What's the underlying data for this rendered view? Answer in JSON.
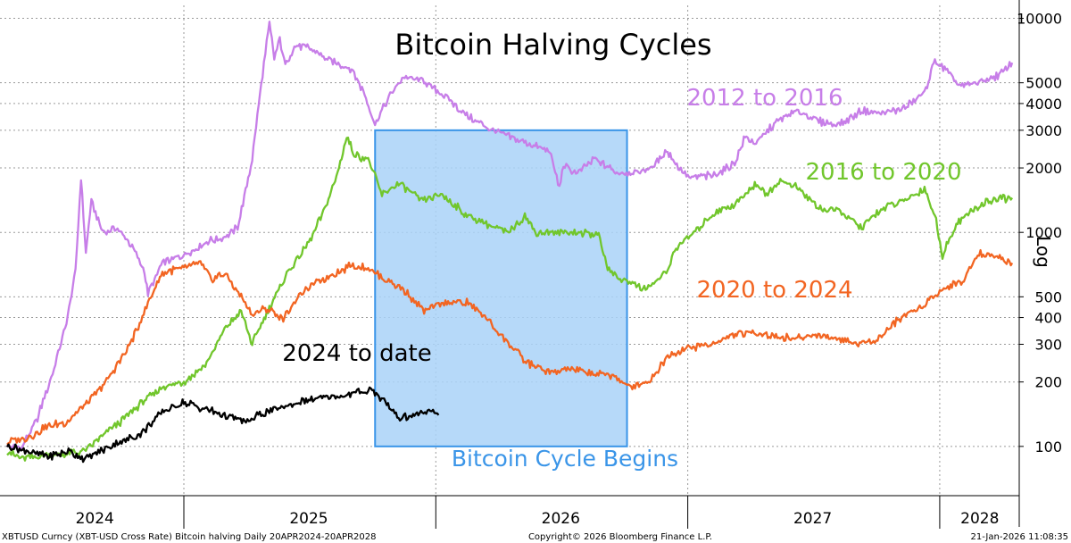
{
  "chart_data": {
    "type": "line",
    "title": "Bitcoin Halving Cycles",
    "yscale": "log",
    "ylabel": "Log",
    "ylim": [
      60,
      11500
    ],
    "y_ticks": [
      {
        "value": 100,
        "label": "100"
      },
      {
        "value": 200,
        "label": "200"
      },
      {
        "value": 300,
        "label": "300"
      },
      {
        "value": 400,
        "label": "400"
      },
      {
        "value": 500,
        "label": "500"
      },
      {
        "value": 1000,
        "label": "1000"
      },
      {
        "value": 2000,
        "label": "2000"
      },
      {
        "value": 3000,
        "label": "3000"
      },
      {
        "value": 4000,
        "label": "4000"
      },
      {
        "value": 5000,
        "label": "5000"
      },
      {
        "value": 10000,
        "label": "10000"
      }
    ],
    "xlim": [
      "2024-04-20",
      "2028-04-20"
    ],
    "x_ticks": [
      {
        "label": "2024",
        "position": "2024-08-25"
      },
      {
        "label": "2025",
        "position": "2025-07-01"
      },
      {
        "label": "2026",
        "position": "2026-07-01"
      },
      {
        "label": "2027",
        "position": "2027-07-01"
      },
      {
        "label": "2028",
        "position": "2028-02-28"
      }
    ],
    "x_boundaries": [
      "2025-01-01",
      "2026-01-01",
      "2027-01-01",
      "2028-01-01"
    ],
    "highlight": {
      "x0": "2025-10-05",
      "x1": "2026-10-05",
      "y0": 100,
      "y1": 3000,
      "label": "Bitcoin Cycle Begins",
      "color": "#a9d2f8",
      "border": "#3a95e8"
    },
    "series": [
      {
        "name": "2012 to 2016",
        "color": "#c77ee8",
        "points": [
          [
            "2024-04-20",
            100
          ],
          [
            "2024-05-10",
            98
          ],
          [
            "2024-06-01",
            130
          ],
          [
            "2024-06-25",
            220
          ],
          [
            "2024-07-15",
            380
          ],
          [
            "2024-07-28",
            650
          ],
          [
            "2024-08-05",
            1800
          ],
          [
            "2024-08-12",
            800
          ],
          [
            "2024-08-20",
            1400
          ],
          [
            "2024-09-05",
            1000
          ],
          [
            "2024-09-25",
            1050
          ],
          [
            "2024-10-20",
            850
          ],
          [
            "2024-11-05",
            650
          ],
          [
            "2024-11-10",
            520
          ],
          [
            "2024-12-01",
            720
          ],
          [
            "2025-01-01",
            780
          ],
          [
            "2025-02-01",
            900
          ],
          [
            "2025-03-01",
            950
          ],
          [
            "2025-03-20",
            1050
          ],
          [
            "2025-04-10",
            2200
          ],
          [
            "2025-04-25",
            5500
          ],
          [
            "2025-05-05",
            9500
          ],
          [
            "2025-05-12",
            6500
          ],
          [
            "2025-05-20",
            8000
          ],
          [
            "2025-05-28",
            6000
          ],
          [
            "2025-06-10",
            7400
          ],
          [
            "2025-07-01",
            7300
          ],
          [
            "2025-08-01",
            6300
          ],
          [
            "2025-09-01",
            5800
          ],
          [
            "2025-09-20",
            4400
          ],
          [
            "2025-10-05",
            3200
          ],
          [
            "2025-10-25",
            4300
          ],
          [
            "2025-11-15",
            5300
          ],
          [
            "2025-12-15",
            5100
          ],
          [
            "2026-01-15",
            4300
          ],
          [
            "2026-02-15",
            3500
          ],
          [
            "2026-03-15",
            3100
          ],
          [
            "2026-04-15",
            2800
          ],
          [
            "2026-05-15",
            2600
          ],
          [
            "2026-06-15",
            2400
          ],
          [
            "2026-06-29",
            1600
          ],
          [
            "2026-07-05",
            2050
          ],
          [
            "2026-07-25",
            1900
          ],
          [
            "2026-08-20",
            2200
          ],
          [
            "2026-09-20",
            1900
          ],
          [
            "2026-10-20",
            1900
          ],
          [
            "2026-11-10",
            2000
          ],
          [
            "2026-12-01",
            2400
          ],
          [
            "2026-12-20",
            2000
          ],
          [
            "2027-01-05",
            1800
          ],
          [
            "2027-02-10",
            1850
          ],
          [
            "2027-03-10",
            2100
          ],
          [
            "2027-03-25",
            2800
          ],
          [
            "2027-04-10",
            2600
          ],
          [
            "2027-05-10",
            3300
          ],
          [
            "2027-06-10",
            3700
          ],
          [
            "2027-07-10",
            3300
          ],
          [
            "2027-08-10",
            3200
          ],
          [
            "2027-09-10",
            3700
          ],
          [
            "2027-10-10",
            3600
          ],
          [
            "2027-11-10",
            3800
          ],
          [
            "2027-12-10",
            4500
          ],
          [
            "2027-12-25",
            6400
          ],
          [
            "2028-01-10",
            5700
          ],
          [
            "2028-02-01",
            4800
          ],
          [
            "2028-02-25",
            5000
          ],
          [
            "2028-03-25",
            5400
          ],
          [
            "2028-04-15",
            6200
          ]
        ]
      },
      {
        "name": "2016 to 2020",
        "color": "#71c62c",
        "points": [
          [
            "2024-04-20",
            95
          ],
          [
            "2024-05-10",
            88
          ],
          [
            "2024-06-10",
            90
          ],
          [
            "2024-07-10",
            92
          ],
          [
            "2024-08-10",
            95
          ],
          [
            "2024-09-01",
            110
          ],
          [
            "2024-10-01",
            130
          ],
          [
            "2024-11-01",
            160
          ],
          [
            "2024-12-01",
            190
          ],
          [
            "2025-01-01",
            200
          ],
          [
            "2025-02-01",
            240
          ],
          [
            "2025-03-01",
            350
          ],
          [
            "2025-03-25",
            430
          ],
          [
            "2025-04-10",
            300
          ],
          [
            "2025-05-01",
            420
          ],
          [
            "2025-06-01",
            650
          ],
          [
            "2025-07-01",
            900
          ],
          [
            "2025-07-20",
            1200
          ],
          [
            "2025-08-10",
            1800
          ],
          [
            "2025-08-25",
            2800
          ],
          [
            "2025-09-05",
            2300
          ],
          [
            "2025-09-25",
            2200
          ],
          [
            "2025-10-15",
            1500
          ],
          [
            "2025-11-10",
            1700
          ],
          [
            "2025-12-10",
            1400
          ],
          [
            "2026-01-10",
            1500
          ],
          [
            "2026-02-15",
            1200
          ],
          [
            "2026-03-15",
            1100
          ],
          [
            "2026-04-15",
            1000
          ],
          [
            "2026-05-10",
            1200
          ],
          [
            "2026-05-25",
            1000
          ],
          [
            "2026-06-25",
            1000
          ],
          [
            "2026-07-15",
            1000
          ],
          [
            "2026-08-25",
            980
          ],
          [
            "2026-09-05",
            700
          ],
          [
            "2026-09-25",
            600
          ],
          [
            "2026-10-05",
            600
          ],
          [
            "2026-11-01",
            540
          ],
          [
            "2026-12-01",
            650
          ],
          [
            "2026-12-15",
            850
          ],
          [
            "2027-01-10",
            1000
          ],
          [
            "2027-02-10",
            1250
          ],
          [
            "2027-03-10",
            1350
          ],
          [
            "2027-04-10",
            1700
          ],
          [
            "2027-04-25",
            1500
          ],
          [
            "2027-05-15",
            1750
          ],
          [
            "2027-06-10",
            1600
          ],
          [
            "2027-07-10",
            1300
          ],
          [
            "2027-08-10",
            1250
          ],
          [
            "2027-09-10",
            1050
          ],
          [
            "2027-10-10",
            1300
          ],
          [
            "2027-11-10",
            1400
          ],
          [
            "2027-12-10",
            1600
          ],
          [
            "2027-12-25",
            1200
          ],
          [
            "2028-01-05",
            780
          ],
          [
            "2028-01-25",
            1100
          ],
          [
            "2028-02-15",
            1250
          ],
          [
            "2028-03-10",
            1400
          ],
          [
            "2028-04-15",
            1450
          ]
        ]
      },
      {
        "name": "2020 to 2024",
        "color": "#f26522",
        "points": [
          [
            "2024-04-20",
            105
          ],
          [
            "2024-05-20",
            110
          ],
          [
            "2024-06-20",
            125
          ],
          [
            "2024-07-15",
            130
          ],
          [
            "2024-08-15",
            160
          ],
          [
            "2024-09-15",
            210
          ],
          [
            "2024-10-10",
            280
          ],
          [
            "2024-10-25",
            350
          ],
          [
            "2024-11-10",
            470
          ],
          [
            "2024-12-01",
            650
          ],
          [
            "2025-01-01",
            680
          ],
          [
            "2025-01-25",
            720
          ],
          [
            "2025-02-10",
            600
          ],
          [
            "2025-03-01",
            650
          ],
          [
            "2025-03-25",
            500
          ],
          [
            "2025-04-10",
            410
          ],
          [
            "2025-04-25",
            440
          ],
          [
            "2025-05-10",
            430
          ],
          [
            "2025-05-25",
            390
          ],
          [
            "2025-06-15",
            500
          ],
          [
            "2025-07-10",
            580
          ],
          [
            "2025-08-10",
            650
          ],
          [
            "2025-09-01",
            700
          ],
          [
            "2025-09-25",
            680
          ],
          [
            "2025-10-15",
            620
          ],
          [
            "2025-11-15",
            540
          ],
          [
            "2025-12-15",
            430
          ],
          [
            "2026-01-15",
            470
          ],
          [
            "2026-02-15",
            470
          ],
          [
            "2026-03-15",
            400
          ],
          [
            "2026-04-10",
            320
          ],
          [
            "2026-05-10",
            250
          ],
          [
            "2026-06-15",
            220
          ],
          [
            "2026-07-15",
            230
          ],
          [
            "2026-08-15",
            220
          ],
          [
            "2026-09-15",
            215
          ],
          [
            "2026-10-05",
            190
          ],
          [
            "2026-11-05",
            200
          ],
          [
            "2026-12-05",
            270
          ],
          [
            "2027-01-05",
            290
          ],
          [
            "2027-02-05",
            300
          ],
          [
            "2027-03-05",
            330
          ],
          [
            "2027-04-05",
            340
          ],
          [
            "2027-05-05",
            330
          ],
          [
            "2027-06-05",
            320
          ],
          [
            "2027-07-05",
            330
          ],
          [
            "2027-08-05",
            320
          ],
          [
            "2027-09-05",
            300
          ],
          [
            "2027-10-05",
            320
          ],
          [
            "2027-11-05",
            400
          ],
          [
            "2027-12-05",
            450
          ],
          [
            "2028-01-05",
            540
          ],
          [
            "2028-02-05",
            600
          ],
          [
            "2028-02-25",
            800
          ],
          [
            "2028-03-20",
            780
          ],
          [
            "2028-04-15",
            720
          ]
        ]
      },
      {
        "name": "2024 to date",
        "color": "#000000",
        "points": [
          [
            "2024-04-20",
            100
          ],
          [
            "2024-05-20",
            95
          ],
          [
            "2024-06-20",
            90
          ],
          [
            "2024-07-20",
            95
          ],
          [
            "2024-08-10",
            87
          ],
          [
            "2024-09-01",
            95
          ],
          [
            "2024-10-01",
            105
          ],
          [
            "2024-11-01",
            115
          ],
          [
            "2024-12-01",
            145
          ],
          [
            "2025-01-01",
            160
          ],
          [
            "2025-02-01",
            150
          ],
          [
            "2025-03-01",
            140
          ],
          [
            "2025-04-01",
            130
          ],
          [
            "2025-05-01",
            145
          ],
          [
            "2025-06-01",
            155
          ],
          [
            "2025-07-01",
            165
          ],
          [
            "2025-08-01",
            170
          ],
          [
            "2025-09-01",
            175
          ],
          [
            "2025-10-01",
            185
          ],
          [
            "2025-10-20",
            160
          ],
          [
            "2025-11-10",
            135
          ],
          [
            "2025-12-01",
            140
          ],
          [
            "2025-12-20",
            145
          ],
          [
            "2026-01-05",
            140
          ]
        ]
      }
    ]
  },
  "series_labels": [
    "2012 to 2016",
    "2016 to 2020",
    "2020 to 2024",
    "2024 to date"
  ],
  "footer": {
    "left": "XBTUSD Curncy (XBT-USD Cross Rate) Bitcoin halving Daily 20APR2024-20APR2028",
    "center": "Copyright© 2026 Bloomberg Finance L.P.",
    "right": "21-Jan-2026 11:08:35"
  }
}
